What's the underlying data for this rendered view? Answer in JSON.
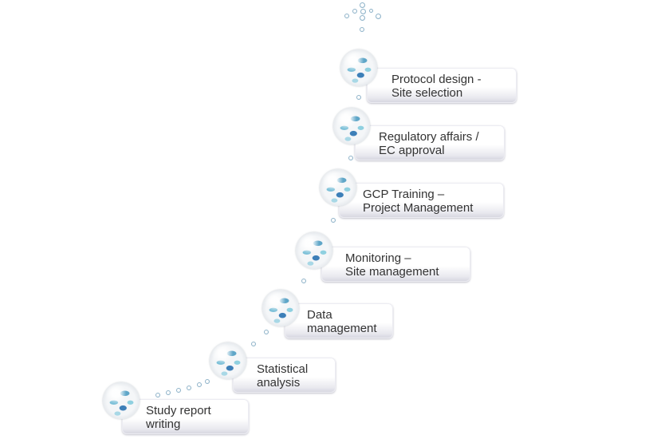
{
  "steps": [
    {
      "label": "Protocol design -\nSite selection"
    },
    {
      "label": "Regulatory  affairs /\nEC approval"
    },
    {
      "label": "GCP Training –\nProject Management"
    },
    {
      "label": "Monitoring –\nSite management"
    },
    {
      "label": "Data\nmanagement"
    },
    {
      "label": "Statistical\nanalysis"
    },
    {
      "label": "Study report\nwriting"
    }
  ],
  "colors": {
    "bubble_outline": "#8fb3c9",
    "text": "#333333",
    "sphere_accent": "#5fa6c8"
  },
  "icons": {
    "step_marker": "molecule-sphere-icon",
    "connector": "bubble-dot-icon"
  }
}
